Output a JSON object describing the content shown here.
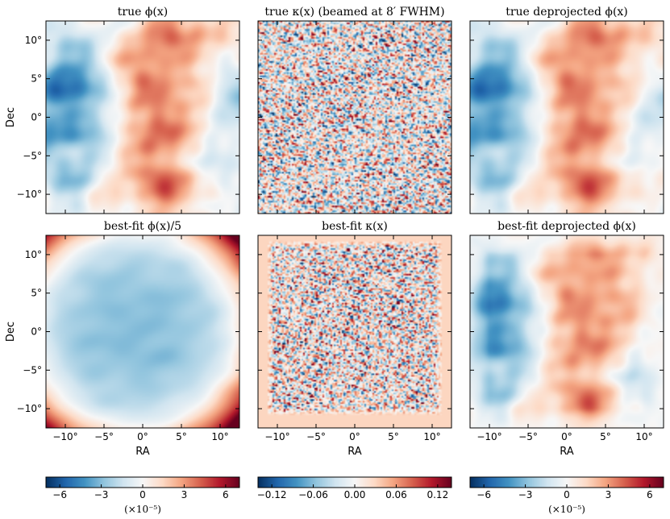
{
  "chart_data": {
    "type": "heatmap",
    "figure_layout": "2 rows x 3 columns of sky maps, one colorbar per column",
    "panels": [
      {
        "id": "true-phi",
        "title": "true ϕ(x)",
        "row": 0,
        "col": 0,
        "colorbar": 0,
        "pattern": "phi_true",
        "scale": 1.0
      },
      {
        "id": "true-kappa",
        "title": "true κ(x)  (beamed at 8′ FWHM)",
        "row": 0,
        "col": 1,
        "colorbar": 1,
        "pattern": "kappa_true",
        "scale": 1.0
      },
      {
        "id": "true-deproj",
        "title": "true deprojected ϕ(x)",
        "row": 0,
        "col": 2,
        "colorbar": 2,
        "pattern": "phi_deproj",
        "scale": 1.0
      },
      {
        "id": "fit-phi",
        "title": "best-fit ϕ(x)/5",
        "row": 1,
        "col": 0,
        "colorbar": 0,
        "pattern": "phi_bowl",
        "scale": 1.0
      },
      {
        "id": "fit-kappa",
        "title": "best-fit κ(x)",
        "row": 1,
        "col": 1,
        "colorbar": 1,
        "pattern": "kappa_fit",
        "scale": 1.0
      },
      {
        "id": "fit-deproj",
        "title": "best-fit deprojected ϕ(x)",
        "row": 1,
        "col": 2,
        "colorbar": 2,
        "pattern": "phi_deproj_fit",
        "scale": 1.0
      }
    ],
    "x_axis": {
      "label": "RA",
      "range": [
        -12.5,
        12.5
      ],
      "ticks": [
        -10,
        -5,
        0,
        5,
        10
      ],
      "tick_labels": [
        "−10°",
        "−5°",
        "0°",
        "5°",
        "10°"
      ]
    },
    "y_axis": {
      "label": "Dec",
      "range": [
        -12.5,
        12.5
      ],
      "ticks": [
        10,
        5,
        0,
        -5,
        -10
      ],
      "tick_labels": [
        "10°",
        "5°",
        "0°",
        "−5°",
        "−10°"
      ]
    },
    "colorbars": [
      {
        "range": [
          -7,
          7
        ],
        "ticks": [
          -6,
          -3,
          0,
          3,
          6
        ],
        "tick_labels": [
          "−6",
          "−3",
          "0",
          "3",
          "6"
        ],
        "multiplier": "(×10⁻⁵)",
        "colormap": "RdBu_r"
      },
      {
        "range": [
          -0.14,
          0.14
        ],
        "ticks": [
          -0.12,
          -0.06,
          0,
          0.06,
          0.12
        ],
        "tick_labels": [
          "−0.12",
          "−0.06",
          "0.00",
          "0.06",
          "0.12"
        ],
        "multiplier": "",
        "colormap": "RdBu_r"
      },
      {
        "range": [
          -7,
          7
        ],
        "ticks": [
          -6,
          -3,
          0,
          3,
          6
        ],
        "tick_labels": [
          "−6",
          "−3",
          "0",
          "3",
          "6"
        ],
        "multiplier": "(×10⁻⁵)",
        "colormap": "RdBu_r"
      }
    ],
    "colormap_stops": [
      "#053061",
      "#2166ac",
      "#4393c3",
      "#92c5de",
      "#d1e5f0",
      "#f7f7f7",
      "#fddbc7",
      "#f4a582",
      "#d6604d",
      "#b2182b",
      "#67001f"
    ]
  }
}
